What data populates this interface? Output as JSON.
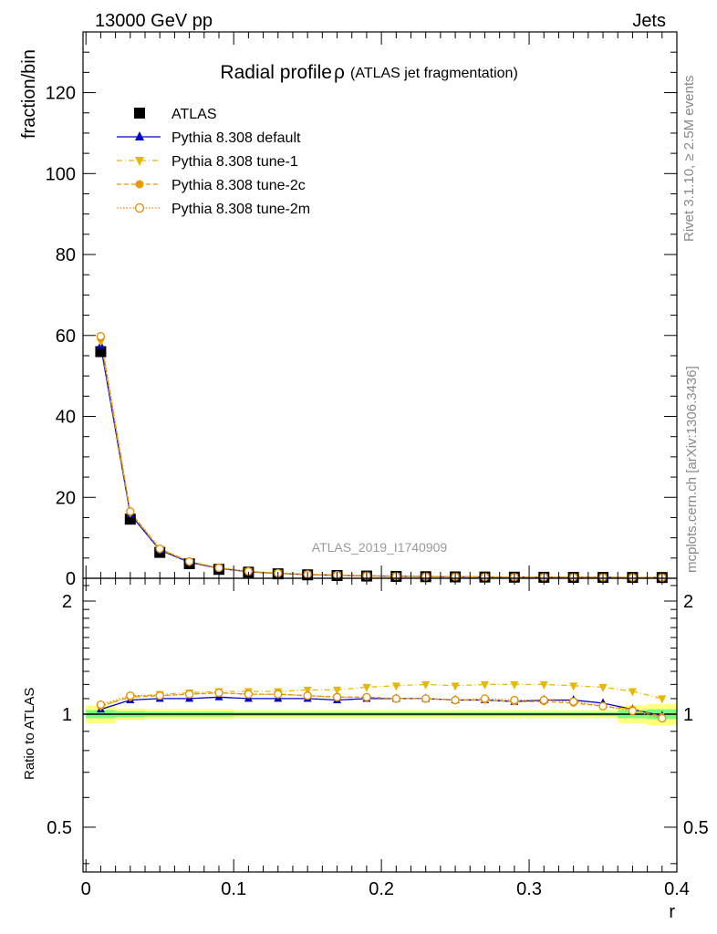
{
  "header": {
    "energy_label": "13000 GeV pp",
    "category_label": "Jets"
  },
  "side_text": {
    "rivet": "Rivet 3.1.10, ≥ 2.5M events",
    "source": "mcplots.cern.ch [arXiv:1306.3436]"
  },
  "colors": {
    "atlas": "#000000",
    "default": "#0000cc",
    "tune1": "#e6b800",
    "tune2c": "#e69a00",
    "tune2m": "#e68a00",
    "band_inner": "#7cfc7c",
    "band_outer": "#ffff80"
  },
  "chart_data": [
    {
      "panel": "main",
      "type": "line",
      "title": "Radial profile",
      "title_symbol": "ρ",
      "subtitle": "(ATLAS jet fragmentation)",
      "watermark": "ATLAS_2019_I1740909",
      "xlabel": "r",
      "ylabel": "fraction/bin",
      "xlim": [
        -0.002,
        0.4
      ],
      "ylim": [
        0,
        135
      ],
      "yticks": [
        0,
        20,
        40,
        60,
        80,
        100,
        120
      ],
      "ytick_labels": [
        "0",
        "20",
        "40",
        "60",
        "80",
        "100",
        "120"
      ],
      "legend": {
        "location": "top-left",
        "entries": [
          "ATLAS",
          "Pythia 8.308 default",
          "Pythia 8.308 tune-1",
          "Pythia 8.308 tune-2c",
          "Pythia 8.308 tune-2m"
        ]
      },
      "x": [
        0.01,
        0.03,
        0.05,
        0.07,
        0.09,
        0.11,
        0.13,
        0.15,
        0.17,
        0.19,
        0.21,
        0.23,
        0.25,
        0.27,
        0.29,
        0.31,
        0.33,
        0.35,
        0.37,
        0.39
      ],
      "series": [
        {
          "name": "ATLAS",
          "marker": "square",
          "values": [
            56,
            14.6,
            6.4,
            3.6,
            2.2,
            1.5,
            1.1,
            0.85,
            0.68,
            0.55,
            0.46,
            0.39,
            0.34,
            0.3,
            0.27,
            0.25,
            0.23,
            0.21,
            0.2,
            0.19
          ]
        },
        {
          "name": "Pythia 8.308 default",
          "marker": "triangle-up",
          "values": [
            57.5,
            15.8,
            7.0,
            3.95,
            2.45,
            1.63,
            1.2,
            0.92,
            0.73,
            0.59,
            0.49,
            0.42,
            0.36,
            0.32,
            0.29,
            0.27,
            0.25,
            0.22,
            0.205,
            0.19
          ]
        },
        {
          "name": "Pythia 8.308 tune-1",
          "marker": "triangle-down",
          "values": [
            58.5,
            16.2,
            7.2,
            4.1,
            2.55,
            1.7,
            1.25,
            0.97,
            0.78,
            0.64,
            0.53,
            0.45,
            0.39,
            0.35,
            0.31,
            0.29,
            0.27,
            0.24,
            0.22,
            0.21
          ]
        },
        {
          "name": "Pythia 8.308 tune-2c",
          "marker": "circle",
          "values": [
            59.2,
            16.4,
            7.25,
            4.1,
            2.55,
            1.7,
            1.24,
            0.95,
            0.76,
            0.62,
            0.51,
            0.44,
            0.38,
            0.33,
            0.3,
            0.28,
            0.26,
            0.23,
            0.21,
            0.19
          ]
        },
        {
          "name": "Pythia 8.308 tune-2m",
          "marker": "circle-open",
          "values": [
            59.8,
            16.5,
            7.3,
            4.15,
            2.57,
            1.71,
            1.25,
            0.96,
            0.77,
            0.62,
            0.51,
            0.44,
            0.38,
            0.33,
            0.3,
            0.28,
            0.26,
            0.23,
            0.21,
            0.19
          ]
        }
      ]
    },
    {
      "panel": "ratio",
      "type": "line",
      "ylabel": "Ratio to ATLAS",
      "xlabel": "r",
      "xlim": [
        -0.002,
        0.4
      ],
      "ylim": [
        0.38,
        2.3
      ],
      "yscale": "log",
      "yticks": [
        0.5,
        1,
        2
      ],
      "ytick_labels": [
        "0.5",
        "1",
        "2"
      ],
      "xticks": [
        0,
        0.1,
        0.2,
        0.3,
        0.4
      ],
      "xtick_labels": [
        "0",
        "0.1",
        "0.2",
        "0.3",
        "0.4"
      ],
      "x": [
        0.01,
        0.03,
        0.05,
        0.07,
        0.09,
        0.11,
        0.13,
        0.15,
        0.17,
        0.19,
        0.21,
        0.23,
        0.25,
        0.27,
        0.29,
        0.31,
        0.33,
        0.35,
        0.37,
        0.39
      ],
      "band_inner": [
        0.025,
        0.018,
        0.015,
        0.015,
        0.015,
        0.012,
        0.012,
        0.012,
        0.012,
        0.012,
        0.012,
        0.012,
        0.012,
        0.012,
        0.012,
        0.012,
        0.012,
        0.012,
        0.025,
        0.03
      ],
      "band_outer": [
        0.055,
        0.035,
        0.03,
        0.03,
        0.03,
        0.025,
        0.025,
        0.025,
        0.025,
        0.025,
        0.025,
        0.025,
        0.025,
        0.025,
        0.025,
        0.025,
        0.025,
        0.025,
        0.055,
        0.065
      ],
      "series": [
        {
          "name": "Pythia 8.308 default",
          "values": [
            1.03,
            1.09,
            1.1,
            1.1,
            1.11,
            1.1,
            1.1,
            1.1,
            1.09,
            1.1,
            1.1,
            1.1,
            1.09,
            1.09,
            1.08,
            1.09,
            1.09,
            1.07,
            1.03,
            0.99
          ]
        },
        {
          "name": "Pythia 8.308 tune-1",
          "values": [
            1.05,
            1.11,
            1.13,
            1.14,
            1.15,
            1.15,
            1.15,
            1.16,
            1.16,
            1.18,
            1.19,
            1.2,
            1.19,
            1.2,
            1.2,
            1.2,
            1.19,
            1.18,
            1.15,
            1.1
          ]
        },
        {
          "name": "Pythia 8.308 tune-2c",
          "values": [
            1.05,
            1.11,
            1.12,
            1.13,
            1.14,
            1.13,
            1.13,
            1.12,
            1.11,
            1.11,
            1.1,
            1.1,
            1.09,
            1.09,
            1.08,
            1.08,
            1.07,
            1.05,
            1.03,
            0.985
          ]
        },
        {
          "name": "Pythia 8.308 tune-2m",
          "values": [
            1.06,
            1.12,
            1.12,
            1.13,
            1.14,
            1.13,
            1.13,
            1.12,
            1.11,
            1.11,
            1.1,
            1.1,
            1.09,
            1.1,
            1.09,
            1.09,
            1.08,
            1.05,
            1.02,
            0.975
          ]
        }
      ]
    }
  ]
}
